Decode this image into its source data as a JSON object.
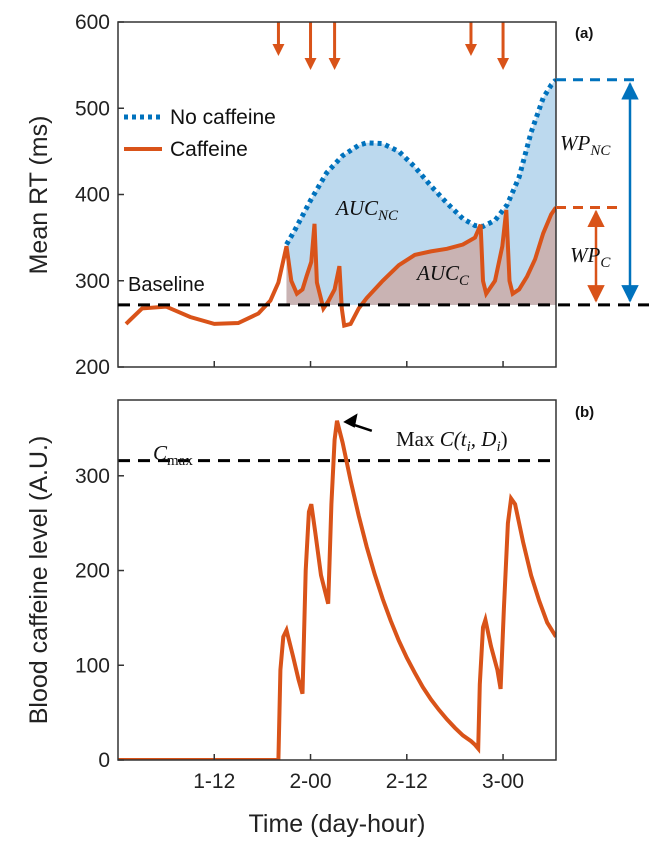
{
  "colors": {
    "caffeine": "#d95319",
    "no_caffeine": "#0072bd",
    "auc_nc_fill": "#bcd9ee",
    "auc_c_fill": "#c9b3b3",
    "baseline": "#000000"
  },
  "chart_data": [
    {
      "panel_label": "(a)",
      "type": "line",
      "xlabel": "",
      "ylabel": "Mean RT (ms)",
      "ylim": [
        200,
        600
      ],
      "yticks": [
        "200",
        "300",
        "400",
        "500",
        "600"
      ],
      "grid": false,
      "legend": {
        "placement": "top-left",
        "entries": [
          "No caffeine",
          "Caffeine"
        ]
      },
      "baseline": {
        "label": "Baseline",
        "y": 272
      },
      "series": [
        {
          "name": "Caffeine",
          "style": "solid",
          "points": [
            [
              1.0,
              250
            ],
            [
              3.0,
              268
            ],
            [
              6.0,
              270
            ],
            [
              9.0,
              258
            ],
            [
              12.0,
              250
            ],
            [
              15.0,
              251
            ],
            [
              17.5,
              262
            ],
            [
              19.0,
              277
            ],
            [
              20.0,
              298
            ],
            [
              21.0,
              340
            ],
            [
              21.6,
              300
            ],
            [
              22.3,
              285
            ],
            [
              23.0,
              290
            ],
            [
              23.5,
              305
            ],
            [
              24.1,
              322
            ],
            [
              24.5,
              366
            ],
            [
              24.8,
              298
            ],
            [
              25.6,
              268
            ],
            [
              26.2,
              276
            ],
            [
              27.0,
              290
            ],
            [
              27.6,
              317
            ],
            [
              27.9,
              268
            ],
            [
              28.2,
              248
            ],
            [
              29.0,
              250
            ],
            [
              30.0,
              268
            ],
            [
              31.0,
              280
            ],
            [
              33.0,
              300
            ],
            [
              35.0,
              318
            ],
            [
              37.0,
              330
            ],
            [
              39.0,
              334
            ],
            [
              41.0,
              337
            ],
            [
              43.0,
              342
            ],
            [
              44.5,
              350
            ],
            [
              45.2,
              365
            ],
            [
              45.5,
              300
            ],
            [
              45.9,
              285
            ],
            [
              47.0,
              300
            ],
            [
              47.9,
              340
            ],
            [
              48.4,
              382
            ],
            [
              48.8,
              300
            ],
            [
              49.2,
              285
            ],
            [
              50.0,
              290
            ],
            [
              51.0,
              305
            ],
            [
              52.0,
              325
            ],
            [
              53.0,
              355
            ],
            [
              54.0,
              377
            ],
            [
              54.6,
              385
            ]
          ]
        },
        {
          "name": "No caffeine",
          "style": "dotted",
          "points": [
            [
              21.0,
              342
            ],
            [
              22.0,
              358
            ],
            [
              24.0,
              393
            ],
            [
              26.0,
              425
            ],
            [
              28.0,
              445
            ],
            [
              30.0,
              457
            ],
            [
              31.0,
              460
            ],
            [
              33.0,
              459
            ],
            [
              35.0,
              450
            ],
            [
              37.0,
              432
            ],
            [
              39.0,
              410
            ],
            [
              41.0,
              390
            ],
            [
              43.0,
              372
            ],
            [
              44.5,
              364
            ],
            [
              45.5,
              363
            ],
            [
              47.0,
              370
            ],
            [
              48.5,
              388
            ],
            [
              50.0,
              420
            ],
            [
              51.5,
              472
            ],
            [
              53.0,
              512
            ],
            [
              54.0,
              527
            ],
            [
              54.6,
              533
            ]
          ]
        }
      ],
      "dose_markers_x": [
        20.0,
        24.0,
        27.0,
        44.0,
        48.0
      ],
      "areas": [
        {
          "label_main": "AUC",
          "label_sub": "NC"
        },
        {
          "label_main": "AUC",
          "label_sub": "C"
        }
      ],
      "wp_nc": {
        "label_main": "WP",
        "label_sub": "NC",
        "from": 272,
        "to": 533
      },
      "wp_c": {
        "label_main": "WP",
        "label_sub": "C",
        "from": 272,
        "to": 385
      }
    },
    {
      "panel_label": "(b)",
      "type": "line",
      "xlabel": "Time (day-hour)",
      "ylabel": "Blood caffeine level (A.U.)",
      "ylim": [
        0,
        380
      ],
      "yticks": [
        "0",
        "100",
        "200",
        "300"
      ],
      "xlim": [
        0,
        54.6
      ],
      "x_ticks": [
        {
          "x": 12,
          "label": "1-12"
        },
        {
          "x": 24,
          "label": "2-00"
        },
        {
          "x": 36,
          "label": "2-12"
        },
        {
          "x": 48,
          "label": "3-00"
        }
      ],
      "grid": false,
      "cmax": {
        "label_main": "C",
        "label_sub": "max",
        "y": 316
      },
      "max_annotation": {
        "text_prefix": "Max ",
        "text_main": "C(t",
        "text_sub1": "i",
        "text_mid": ", D",
        "text_sub2": "i",
        "text_end": ")",
        "x": 27.9,
        "y": 358
      },
      "series": [
        {
          "name": "Caffeine",
          "points": [
            [
              0,
              0
            ],
            [
              20.0,
              0
            ],
            [
              20.25,
              95
            ],
            [
              20.6,
              130
            ],
            [
              21.0,
              137
            ],
            [
              21.8,
              110
            ],
            [
              22.5,
              85
            ],
            [
              23.0,
              70
            ],
            [
              23.4,
              200
            ],
            [
              23.8,
              262
            ],
            [
              24.1,
              270
            ],
            [
              24.6,
              240
            ],
            [
              25.3,
              195
            ],
            [
              26.2,
              165
            ],
            [
              26.6,
              270
            ],
            [
              27.0,
              338
            ],
            [
              27.3,
              358
            ],
            [
              28.0,
              335
            ],
            [
              29.0,
              295
            ],
            [
              30.0,
              258
            ],
            [
              31.0,
              225
            ],
            [
              32.0,
              196
            ],
            [
              33.0,
              170
            ],
            [
              34.0,
              147
            ],
            [
              35.0,
              126
            ],
            [
              36.0,
              108
            ],
            [
              37.0,
              92
            ],
            [
              38.0,
              77
            ],
            [
              39.0,
              64
            ],
            [
              40.0,
              53
            ],
            [
              41.0,
              43
            ],
            [
              42.0,
              34
            ],
            [
              43.0,
              26
            ],
            [
              44.0,
              20
            ],
            [
              44.5,
              16
            ],
            [
              44.9,
              12
            ],
            [
              45.1,
              80
            ],
            [
              45.5,
              140
            ],
            [
              45.8,
              148
            ],
            [
              46.5,
              120
            ],
            [
              47.3,
              95
            ],
            [
              47.7,
              75
            ],
            [
              48.1,
              160
            ],
            [
              48.6,
              250
            ],
            [
              49.0,
              276
            ],
            [
              49.5,
              270
            ],
            [
              50.5,
              230
            ],
            [
              51.5,
              195
            ],
            [
              52.5,
              168
            ],
            [
              53.5,
              145
            ],
            [
              54.6,
              130
            ]
          ]
        }
      ]
    }
  ]
}
